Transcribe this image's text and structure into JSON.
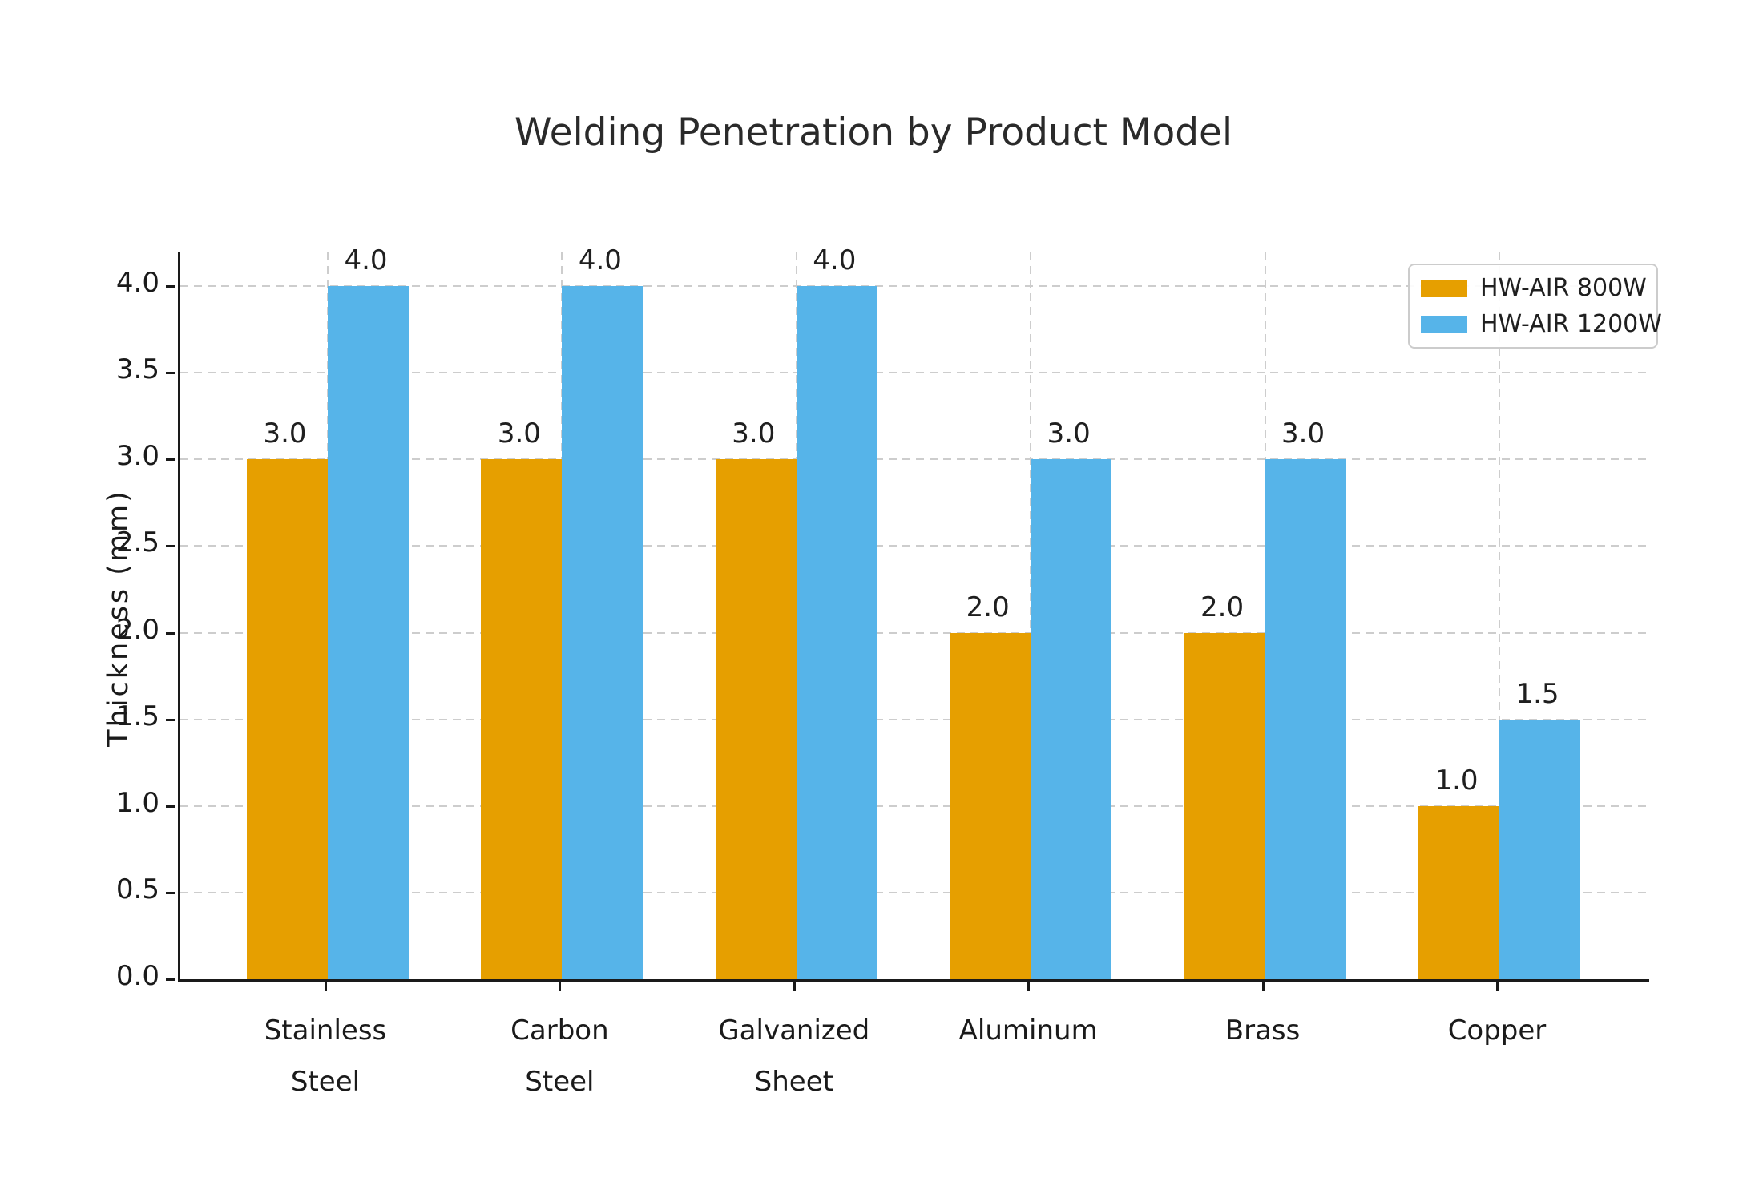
{
  "chart_data": {
    "type": "bar",
    "title": "Welding Penetration by Product Model",
    "xlabel": "",
    "ylabel": "Thickness (mm)",
    "categories": [
      "Stainless\nSteel",
      "Carbon\nSteel",
      "Galvanized\nSheet",
      "Aluminum",
      "Brass",
      "Copper"
    ],
    "series": [
      {
        "name": "HW-AIR 800W",
        "color": "#E69F00",
        "values": [
          3.0,
          3.0,
          3.0,
          2.0,
          2.0,
          1.0
        ]
      },
      {
        "name": "HW-AIR 1200W",
        "color": "#56B4E9",
        "values": [
          4.0,
          4.0,
          4.0,
          3.0,
          3.0,
          1.5
        ]
      }
    ],
    "y_ticks": [
      "0.0",
      "0.5",
      "1.0",
      "1.5",
      "2.0",
      "2.5",
      "3.0",
      "3.5",
      "4.0"
    ],
    "ylim": [
      0,
      4.195
    ],
    "grid": "dashed horizontal and vertical",
    "legend_position": "upper right",
    "value_labels": "one decimal above each bar"
  }
}
